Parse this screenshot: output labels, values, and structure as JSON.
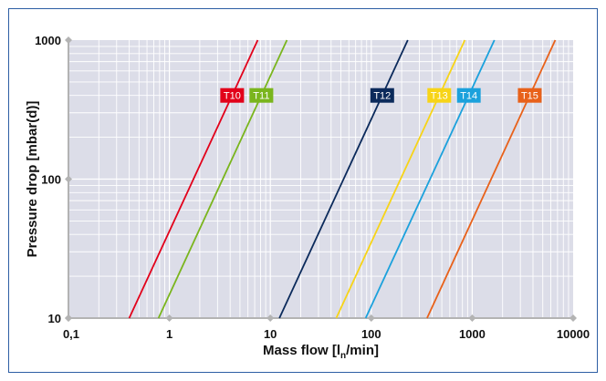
{
  "chart_data": {
    "type": "line",
    "x_scale": "log",
    "y_scale": "log",
    "xlim": [
      0.1,
      10000
    ],
    "ylim": [
      10,
      1000
    ],
    "grid": true,
    "x_ticks": [
      "0,1",
      "1",
      "10",
      "100",
      "1000",
      "10000"
    ],
    "y_ticks": [
      "10",
      "100",
      "1000"
    ],
    "xlabel": "Mass flow [l",
    "xlabel_sub": "n",
    "xlabel_tail": "/min]",
    "ylabel": "Pressure drop [mbar(d)]",
    "plot_background": "#dcdde8",
    "grid_color": "#ffffff",
    "series": [
      {
        "name": "T10",
        "color": "#e2001a",
        "x": [
          0.4,
          7.5
        ],
        "y": [
          10,
          1000
        ],
        "label_at": 400
      },
      {
        "name": "T11",
        "color": "#7ab51d",
        "x": [
          0.78,
          14.6
        ],
        "y": [
          10,
          1000
        ],
        "label_at": 400
      },
      {
        "name": "T12",
        "color": "#0b2a5b",
        "x": [
          12.3,
          230
        ],
        "y": [
          10,
          1000
        ],
        "label_at": 400
      },
      {
        "name": "T13",
        "color": "#f7d417",
        "x": [
          45,
          845
        ],
        "y": [
          10,
          1000
        ],
        "label_at": 400
      },
      {
        "name": "T14",
        "color": "#1ba1dc",
        "x": [
          88,
          1660
        ],
        "y": [
          10,
          1000
        ],
        "label_at": 400
      },
      {
        "name": "T15",
        "color": "#e8611a",
        "x": [
          357,
          6650
        ],
        "y": [
          10,
          1000
        ],
        "label_at": 400
      }
    ]
  }
}
